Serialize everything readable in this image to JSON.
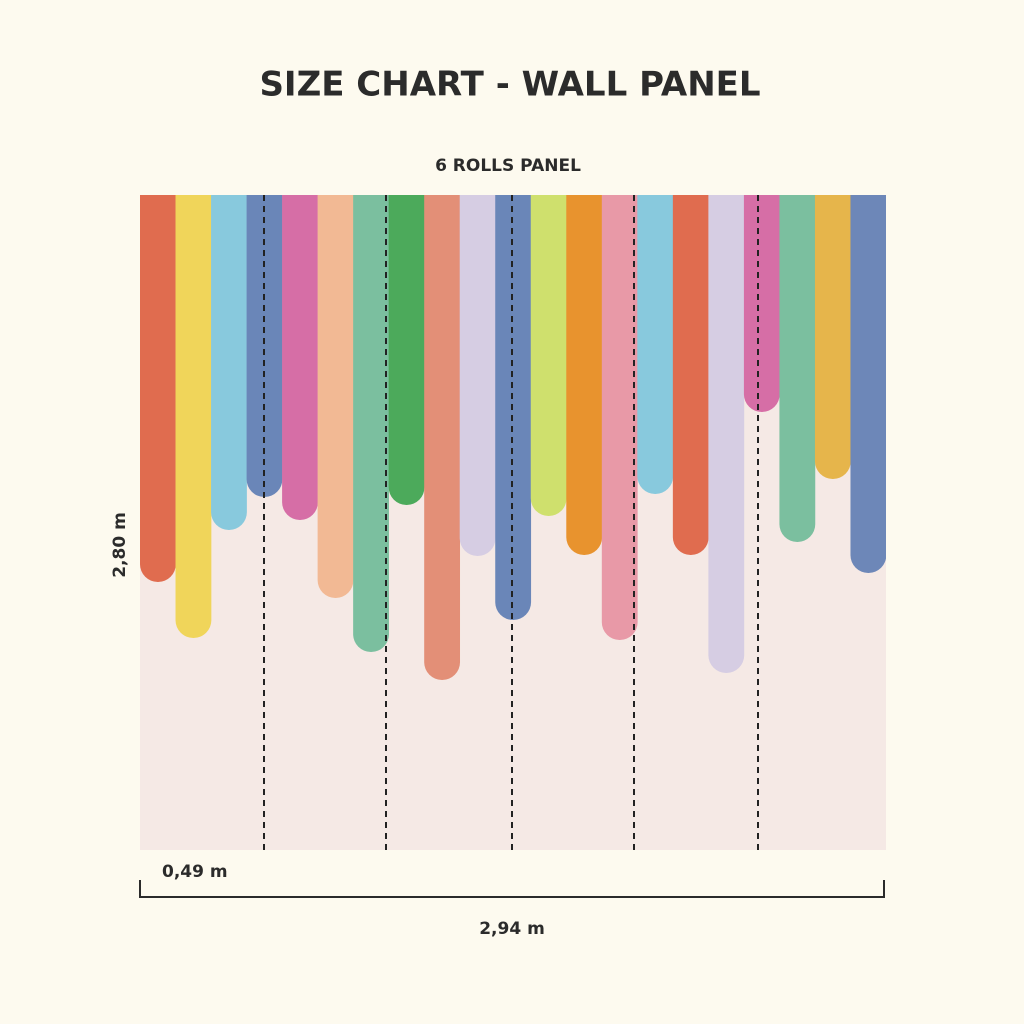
{
  "title": "SIZE CHART - WALL PANEL",
  "subtitle": "6 ROLLS PANEL",
  "height_label": "2,80 m",
  "roll_width_label": "0,49 m",
  "total_width_label": "2,94 m"
}
